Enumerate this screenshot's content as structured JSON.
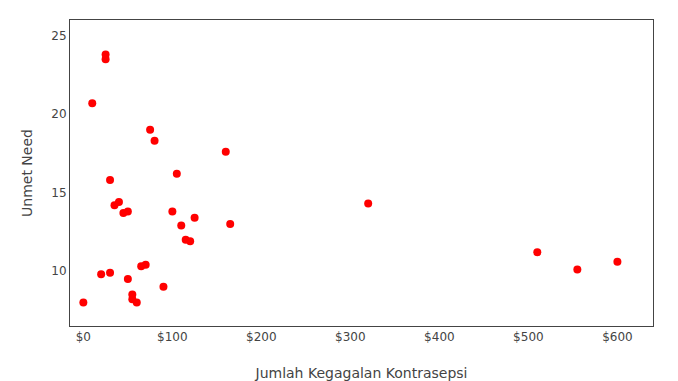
{
  "chart_data": {
    "type": "scatter",
    "x": [
      0,
      10,
      20,
      25,
      25,
      30,
      30,
      35,
      40,
      45,
      50,
      50,
      55,
      55,
      60,
      65,
      70,
      75,
      80,
      90,
      100,
      105,
      110,
      115,
      120,
      125,
      160,
      165,
      320,
      510,
      555,
      600
    ],
    "values": [
      8,
      20.7,
      9.8,
      23.8,
      23.5,
      15.8,
      9.9,
      14.2,
      14.4,
      13.7,
      13.8,
      9.5,
      8.5,
      8.2,
      8.0,
      10.3,
      10.4,
      19.0,
      18.3,
      9.0,
      13.8,
      16.2,
      12.9,
      12.0,
      11.9,
      13.4,
      17.6,
      13.0,
      14.3,
      11.2,
      10.1,
      10.6
    ],
    "color": "#FF0000",
    "x_label": "Jumlah Kegagalan Kontrasepsi",
    "y_label": "Unmet Need",
    "xlim": [
      -15,
      640
    ],
    "ylim": [
      6.5,
      26
    ],
    "xticks": [
      {
        "value": 0,
        "label": "$0"
      },
      {
        "value": 100,
        "label": "$100"
      },
      {
        "value": 200,
        "label": "$200"
      },
      {
        "value": 300,
        "label": "$300"
      },
      {
        "value": 400,
        "label": "$400"
      },
      {
        "value": 500,
        "label": "$500"
      },
      {
        "value": 600,
        "label": "$600"
      }
    ],
    "yticks": [
      10,
      15,
      20,
      25
    ],
    "grid": false
  }
}
